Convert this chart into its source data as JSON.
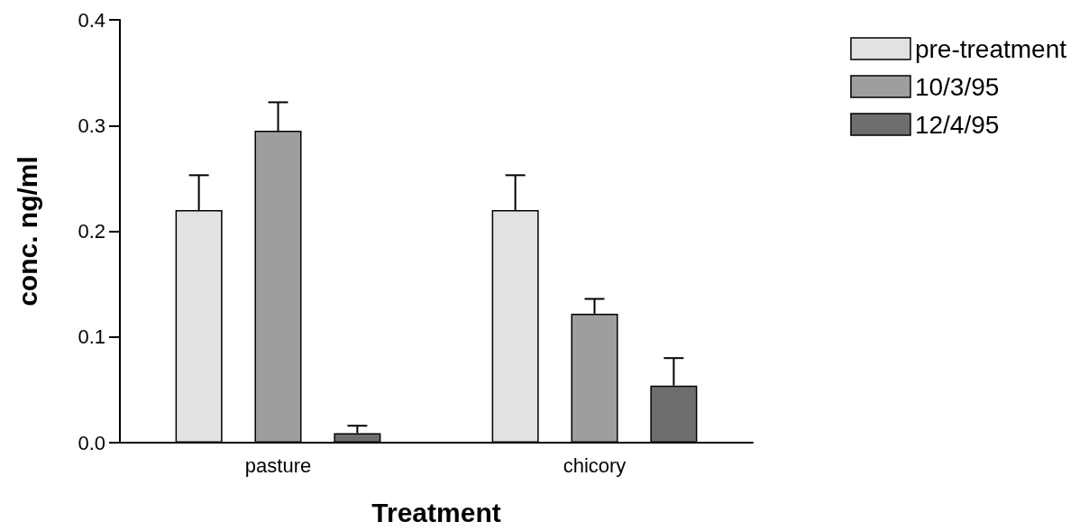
{
  "chart_data": {
    "type": "bar",
    "xlabel": "Treatment",
    "ylabel": "conc. ng/ml",
    "categories": [
      "pasture",
      "chicory"
    ],
    "series": [
      {
        "name": "pre-treatment",
        "color": "#e2e2e2",
        "values": [
          0.22,
          0.22
        ],
        "errors": [
          [
            0.22,
            0.253
          ],
          [
            0.22,
            0.253
          ]
        ]
      },
      {
        "name": "10/3/95",
        "color": "#9e9e9e",
        "values": [
          0.295,
          0.122
        ],
        "errors": [
          [
            0.295,
            0.322
          ],
          [
            0.122,
            0.136
          ]
        ]
      },
      {
        "name": "12/4/95",
        "color": "#6e6e6e",
        "values": [
          0.009,
          0.054
        ],
        "errors": [
          [
            0.009,
            0.016
          ],
          [
            0.054,
            0.08
          ]
        ]
      }
    ],
    "ylim": [
      0,
      0.4
    ],
    "yticks": [
      {
        "value": 0,
        "label": "0.0"
      },
      0.1,
      0.2,
      0.3,
      0.4
    ],
    "grid": false,
    "legend": "top right"
  }
}
